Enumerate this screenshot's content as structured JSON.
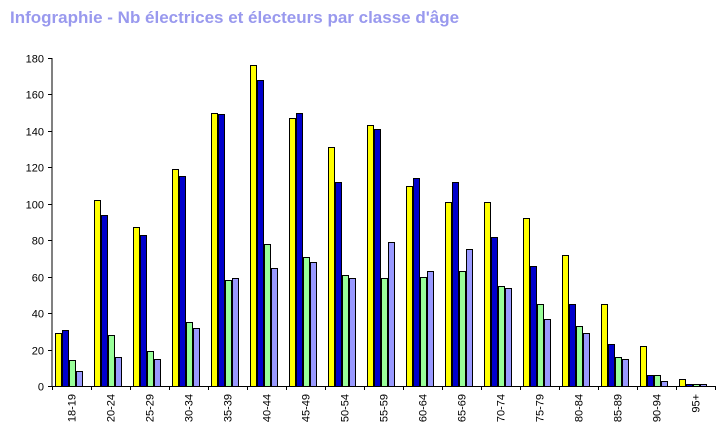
{
  "chart_data": {
    "type": "bar",
    "title": "Infographie - Nb électrices et électeurs par classe d'âge",
    "xlabel": "",
    "ylabel": "",
    "ylim": [
      0,
      180
    ],
    "yticks": [
      0,
      20,
      40,
      60,
      80,
      100,
      120,
      140,
      160,
      180
    ],
    "grid": false,
    "categories": [
      "18-19",
      "20-24",
      "25-29",
      "30-34",
      "35-39",
      "40-44",
      "45-49",
      "50-54",
      "55-59",
      "60-64",
      "65-69",
      "70-74",
      "75-79",
      "80-84",
      "85-89",
      "90-94",
      "95+"
    ],
    "series": [
      {
        "color": "#ffff00",
        "values": [
          29,
          102,
          87,
          119,
          150,
          176,
          147,
          131,
          143,
          110,
          101,
          101,
          92,
          72,
          45,
          22,
          4
        ]
      },
      {
        "color": "#0000cc",
        "values": [
          31,
          94,
          83,
          115,
          149,
          168,
          150,
          112,
          141,
          114,
          112,
          82,
          66,
          45,
          23,
          6,
          1
        ]
      },
      {
        "color": "#99ff99",
        "values": [
          14,
          28,
          19,
          35,
          58,
          78,
          71,
          61,
          59,
          60,
          63,
          55,
          45,
          33,
          16,
          6,
          1
        ]
      },
      {
        "color": "#9999ff",
        "values": [
          8,
          16,
          15,
          32,
          59,
          65,
          68,
          59,
          79,
          63,
          75,
          54,
          37,
          29,
          15,
          3,
          1
        ]
      }
    ]
  }
}
